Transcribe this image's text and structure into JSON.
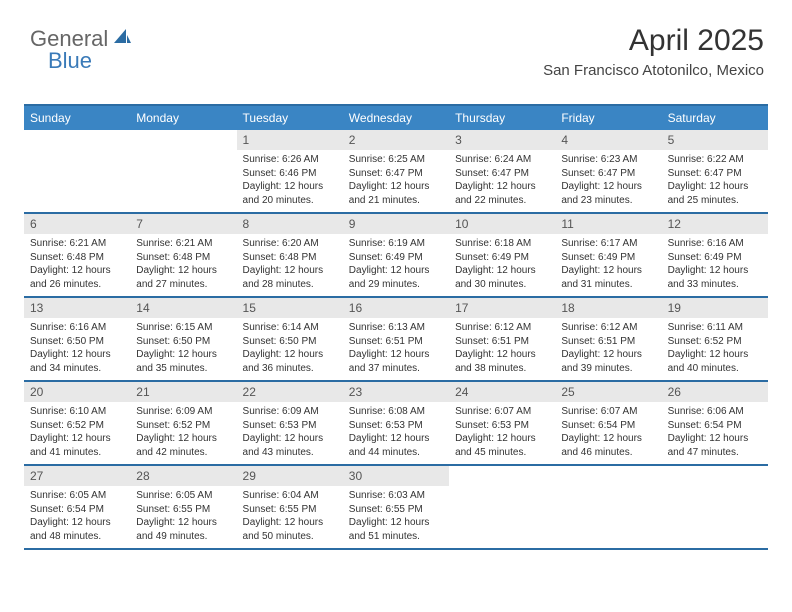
{
  "brand": {
    "word1": "General",
    "word2": "Blue"
  },
  "title": "April 2025",
  "location": "San Francisco Atotonilco, Mexico",
  "colors": {
    "header_bg": "#3a85c4",
    "header_border": "#2b6ca3",
    "daynum_bg": "#e8e8e8",
    "text": "#333333",
    "brand_gray": "#666666",
    "brand_blue": "#3a7ab8"
  },
  "day_headers": [
    "Sunday",
    "Monday",
    "Tuesday",
    "Wednesday",
    "Thursday",
    "Friday",
    "Saturday"
  ],
  "weeks": [
    [
      null,
      null,
      {
        "n": "1",
        "sr": "Sunrise: 6:26 AM",
        "ss": "Sunset: 6:46 PM",
        "d1": "Daylight: 12 hours",
        "d2": "and 20 minutes."
      },
      {
        "n": "2",
        "sr": "Sunrise: 6:25 AM",
        "ss": "Sunset: 6:47 PM",
        "d1": "Daylight: 12 hours",
        "d2": "and 21 minutes."
      },
      {
        "n": "3",
        "sr": "Sunrise: 6:24 AM",
        "ss": "Sunset: 6:47 PM",
        "d1": "Daylight: 12 hours",
        "d2": "and 22 minutes."
      },
      {
        "n": "4",
        "sr": "Sunrise: 6:23 AM",
        "ss": "Sunset: 6:47 PM",
        "d1": "Daylight: 12 hours",
        "d2": "and 23 minutes."
      },
      {
        "n": "5",
        "sr": "Sunrise: 6:22 AM",
        "ss": "Sunset: 6:47 PM",
        "d1": "Daylight: 12 hours",
        "d2": "and 25 minutes."
      }
    ],
    [
      {
        "n": "6",
        "sr": "Sunrise: 6:21 AM",
        "ss": "Sunset: 6:48 PM",
        "d1": "Daylight: 12 hours",
        "d2": "and 26 minutes."
      },
      {
        "n": "7",
        "sr": "Sunrise: 6:21 AM",
        "ss": "Sunset: 6:48 PM",
        "d1": "Daylight: 12 hours",
        "d2": "and 27 minutes."
      },
      {
        "n": "8",
        "sr": "Sunrise: 6:20 AM",
        "ss": "Sunset: 6:48 PM",
        "d1": "Daylight: 12 hours",
        "d2": "and 28 minutes."
      },
      {
        "n": "9",
        "sr": "Sunrise: 6:19 AM",
        "ss": "Sunset: 6:49 PM",
        "d1": "Daylight: 12 hours",
        "d2": "and 29 minutes."
      },
      {
        "n": "10",
        "sr": "Sunrise: 6:18 AM",
        "ss": "Sunset: 6:49 PM",
        "d1": "Daylight: 12 hours",
        "d2": "and 30 minutes."
      },
      {
        "n": "11",
        "sr": "Sunrise: 6:17 AM",
        "ss": "Sunset: 6:49 PM",
        "d1": "Daylight: 12 hours",
        "d2": "and 31 minutes."
      },
      {
        "n": "12",
        "sr": "Sunrise: 6:16 AM",
        "ss": "Sunset: 6:49 PM",
        "d1": "Daylight: 12 hours",
        "d2": "and 33 minutes."
      }
    ],
    [
      {
        "n": "13",
        "sr": "Sunrise: 6:16 AM",
        "ss": "Sunset: 6:50 PM",
        "d1": "Daylight: 12 hours",
        "d2": "and 34 minutes."
      },
      {
        "n": "14",
        "sr": "Sunrise: 6:15 AM",
        "ss": "Sunset: 6:50 PM",
        "d1": "Daylight: 12 hours",
        "d2": "and 35 minutes."
      },
      {
        "n": "15",
        "sr": "Sunrise: 6:14 AM",
        "ss": "Sunset: 6:50 PM",
        "d1": "Daylight: 12 hours",
        "d2": "and 36 minutes."
      },
      {
        "n": "16",
        "sr": "Sunrise: 6:13 AM",
        "ss": "Sunset: 6:51 PM",
        "d1": "Daylight: 12 hours",
        "d2": "and 37 minutes."
      },
      {
        "n": "17",
        "sr": "Sunrise: 6:12 AM",
        "ss": "Sunset: 6:51 PM",
        "d1": "Daylight: 12 hours",
        "d2": "and 38 minutes."
      },
      {
        "n": "18",
        "sr": "Sunrise: 6:12 AM",
        "ss": "Sunset: 6:51 PM",
        "d1": "Daylight: 12 hours",
        "d2": "and 39 minutes."
      },
      {
        "n": "19",
        "sr": "Sunrise: 6:11 AM",
        "ss": "Sunset: 6:52 PM",
        "d1": "Daylight: 12 hours",
        "d2": "and 40 minutes."
      }
    ],
    [
      {
        "n": "20",
        "sr": "Sunrise: 6:10 AM",
        "ss": "Sunset: 6:52 PM",
        "d1": "Daylight: 12 hours",
        "d2": "and 41 minutes."
      },
      {
        "n": "21",
        "sr": "Sunrise: 6:09 AM",
        "ss": "Sunset: 6:52 PM",
        "d1": "Daylight: 12 hours",
        "d2": "and 42 minutes."
      },
      {
        "n": "22",
        "sr": "Sunrise: 6:09 AM",
        "ss": "Sunset: 6:53 PM",
        "d1": "Daylight: 12 hours",
        "d2": "and 43 minutes."
      },
      {
        "n": "23",
        "sr": "Sunrise: 6:08 AM",
        "ss": "Sunset: 6:53 PM",
        "d1": "Daylight: 12 hours",
        "d2": "and 44 minutes."
      },
      {
        "n": "24",
        "sr": "Sunrise: 6:07 AM",
        "ss": "Sunset: 6:53 PM",
        "d1": "Daylight: 12 hours",
        "d2": "and 45 minutes."
      },
      {
        "n": "25",
        "sr": "Sunrise: 6:07 AM",
        "ss": "Sunset: 6:54 PM",
        "d1": "Daylight: 12 hours",
        "d2": "and 46 minutes."
      },
      {
        "n": "26",
        "sr": "Sunrise: 6:06 AM",
        "ss": "Sunset: 6:54 PM",
        "d1": "Daylight: 12 hours",
        "d2": "and 47 minutes."
      }
    ],
    [
      {
        "n": "27",
        "sr": "Sunrise: 6:05 AM",
        "ss": "Sunset: 6:54 PM",
        "d1": "Daylight: 12 hours",
        "d2": "and 48 minutes."
      },
      {
        "n": "28",
        "sr": "Sunrise: 6:05 AM",
        "ss": "Sunset: 6:55 PM",
        "d1": "Daylight: 12 hours",
        "d2": "and 49 minutes."
      },
      {
        "n": "29",
        "sr": "Sunrise: 6:04 AM",
        "ss": "Sunset: 6:55 PM",
        "d1": "Daylight: 12 hours",
        "d2": "and 50 minutes."
      },
      {
        "n": "30",
        "sr": "Sunrise: 6:03 AM",
        "ss": "Sunset: 6:55 PM",
        "d1": "Daylight: 12 hours",
        "d2": "and 51 minutes."
      },
      null,
      null,
      null
    ]
  ]
}
